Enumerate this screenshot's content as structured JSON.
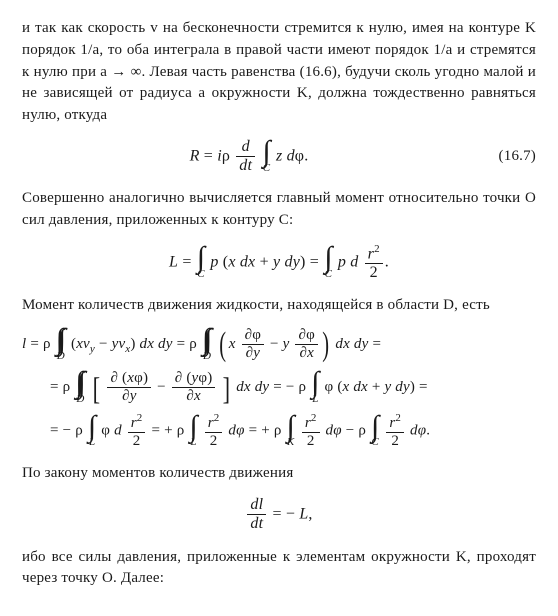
{
  "para1": "и так как скорость v на бесконечности стремится к нулю, имея на контуре K порядок 1/a, то оба интеграла в правой части имеют порядок 1/a и стремятся к нулю при a → ∞. Левая часть равенства (16.6), будучи сколь угодно малой и не зависящей от радиуса a окружности K, должна тождественно равняться нулю, откуда",
  "eq1_num": "(16.7)",
  "para2": "Совершенно аналогично вычисляется главный момент относительно точки О сил давления, приложенных к контуру C:",
  "para3": "Момент количеств движения жидкости, находящейся в области D, есть",
  "para4": "По закону моментов количеств движения",
  "para5": "ибо все силы давления, приложенные к элементам окружности K, проходят через точку О. Далее:",
  "sym": {
    "R": "R",
    "eq": "=",
    "i": "i",
    "rho": "ρ",
    "sp": "·",
    "d": "d",
    "dt": "dt",
    "z": "z",
    "phi": "φ",
    "L": "L",
    "p": "p",
    "x": "x",
    "y": "y",
    "plus": "+",
    "minus": "−",
    "r2": "r",
    "two": "2",
    "l": "l",
    "vy": "v",
    "vx": "v",
    "partial": "∂",
    "C": "C",
    "D": "D",
    "K": "K",
    "Ll": "L",
    "comma": ",",
    "semi": ".",
    "dphi": "dφ",
    "dx": "dx",
    "dy": "dy",
    "dxdy": "dx dy"
  }
}
